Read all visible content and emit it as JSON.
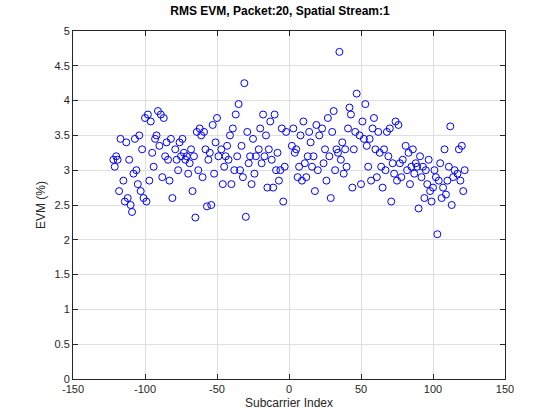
{
  "chart_data": {
    "type": "scatter",
    "title": "RMS EVM, Packet:20, Spatial Stream:1",
    "x_label": "Subcarrier Index",
    "y_label": "EVM (%)",
    "color": "#0000ff",
    "marker": "circle-open",
    "grid": true,
    "xlim": [
      -150,
      150
    ],
    "xticks": [
      -150,
      -100,
      -50,
      0,
      50,
      100,
      150
    ],
    "ylim": [
      0,
      5
    ],
    "yticks": [
      0,
      0.5,
      1,
      1.5,
      2,
      2.5,
      3,
      3.5,
      4,
      4.5,
      5
    ],
    "x": [
      -122,
      -121,
      -120,
      -119,
      -118,
      -117,
      -115,
      -114,
      -113,
      -112,
      -111,
      -110,
      -109,
      -108,
      -107,
      -106,
      -105,
      -104,
      -103,
      -102,
      -101,
      -100,
      -99,
      -98,
      -97,
      -96,
      -95,
      -94,
      -93,
      -92,
      -91,
      -90,
      -89,
      -88,
      -87,
      -86,
      -85,
      -84,
      -83,
      -82,
      -81,
      -79,
      -78,
      -77,
      -76,
      -75,
      -74,
      -73,
      -72,
      -71,
      -70,
      -69,
      -68,
      -67,
      -66,
      -65,
      -64,
      -63,
      -62,
      -61,
      -60,
      -59,
      -58,
      -57,
      -56,
      -55,
      -54,
      -53,
      -52,
      -51,
      -50,
      -49,
      -47,
      -46,
      -45,
      -44,
      -43,
      -42,
      -41,
      -40,
      -39,
      -38,
      -37,
      -36,
      -35,
      -34,
      -33,
      -32,
      -31,
      -30,
      -29,
      -28,
      -27,
      -26,
      -25,
      -24,
      -23,
      -21,
      -20,
      -19,
      -18,
      -17,
      -16,
      -15,
      -14,
      -13,
      -12,
      -11,
      -10,
      -9,
      -8,
      -7,
      -6,
      -5,
      -4,
      -3,
      -2,
      2,
      3,
      4,
      5,
      6,
      7,
      8,
      9,
      10,
      11,
      12,
      13,
      14,
      15,
      16,
      17,
      18,
      19,
      20,
      21,
      23,
      24,
      25,
      26,
      27,
      28,
      29,
      30,
      31,
      32,
      33,
      34,
      35,
      36,
      37,
      38,
      39,
      40,
      41,
      42,
      43,
      44,
      45,
      46,
      47,
      49,
      50,
      51,
      52,
      53,
      54,
      55,
      56,
      57,
      58,
      59,
      60,
      61,
      62,
      63,
      64,
      65,
      66,
      67,
      68,
      69,
      70,
      71,
      72,
      73,
      74,
      75,
      76,
      77,
      78,
      79,
      81,
      82,
      83,
      84,
      85,
      86,
      87,
      88,
      89,
      90,
      91,
      92,
      93,
      94,
      95,
      96,
      97,
      98,
      99,
      100,
      101,
      102,
      103,
      104,
      105,
      106,
      107,
      108,
      109,
      110,
      111,
      112,
      113,
      114,
      115,
      117,
      118,
      119,
      120,
      121,
      122
    ],
    "values": [
      3.15,
      3.05,
      3.2,
      3.15,
      2.7,
      3.45,
      2.85,
      2.55,
      3.4,
      2.6,
      3.15,
      2.5,
      2.4,
      2.95,
      3.45,
      3.0,
      2.8,
      3.5,
      2.7,
      3.3,
      2.6,
      3.75,
      2.55,
      3.8,
      2.85,
      3.7,
      3.25,
      3.05,
      3.45,
      3.5,
      3.85,
      3.35,
      3.8,
      2.9,
      3.75,
      3.2,
      3.4,
      3.15,
      2.85,
      3.45,
      2.6,
      3.3,
      3.15,
      3.0,
      3.4,
      3.2,
      3.45,
      3.25,
      3.15,
      3.2,
      2.95,
      3.1,
      3.3,
      2.7,
      3.2,
      2.32,
      3.55,
      3.0,
      3.6,
      3.5,
      2.9,
      3.55,
      3.3,
      2.48,
      3.15,
      3.25,
      2.5,
      3.65,
      2.95,
      3.4,
      3.75,
      3.2,
      3.3,
      2.8,
      3.05,
      3.2,
      3.35,
      3.15,
      3.5,
      2.8,
      3.6,
      3.0,
      3.8,
      3.2,
      3.95,
      3.0,
      3.35,
      2.9,
      4.25,
      2.33,
      3.55,
      3.1,
      3.2,
      2.8,
      3.45,
      2.95,
      3.2,
      3.3,
      3.6,
      3.1,
      3.8,
      3.2,
      3.5,
      2.75,
      3.3,
      3.7,
      3.15,
      2.75,
      3.8,
      3.0,
      3.25,
      2.85,
      3.0,
      3.6,
      2.55,
      3.05,
      3.55,
      3.35,
      3.6,
      3.25,
      3.3,
      2.9,
      3.05,
      3.5,
      2.85,
      3.7,
      3.1,
      2.9,
      3.2,
      3.55,
      3.4,
      3.05,
      3.2,
      2.7,
      3.65,
      3.0,
      3.5,
      3.6,
      3.1,
      3.3,
      2.85,
      3.75,
      3.2,
      2.6,
      3.55,
      3.85,
      3.0,
      3.3,
      3.25,
      4.7,
      3.15,
      3.4,
      2.95,
      3.3,
      3.05,
      3.6,
      3.9,
      3.8,
      2.75,
      3.3,
      3.55,
      4.1,
      3.5,
      2.8,
      3.7,
      3.45,
      3.95,
      3.35,
      3.05,
      3.45,
      2.85,
      3.6,
      3.75,
      3.3,
      2.9,
      3.55,
      3.25,
      3.05,
      2.75,
      3.3,
      3.0,
      3.55,
      3.2,
      3.6,
      2.55,
      3.1,
      2.95,
      3.7,
      2.85,
      3.65,
      3.1,
      2.9,
      3.15,
      3.35,
      3.0,
      3.25,
      2.8,
      3.05,
      3.3,
      2.95,
      3.1,
      3.05,
      2.45,
      3.2,
      2.9,
      3.05,
      2.6,
      3.0,
      2.8,
      3.15,
      2.7,
      2.55,
      2.75,
      3.0,
      2.9,
      2.08,
      2.85,
      3.1,
      2.6,
      2.75,
      3.3,
      2.65,
      2.85,
      3.05,
      3.63,
      2.5,
      2.9,
      3.0,
      2.95,
      3.3,
      2.85,
      3.35,
      2.7,
      3.0
    ]
  }
}
